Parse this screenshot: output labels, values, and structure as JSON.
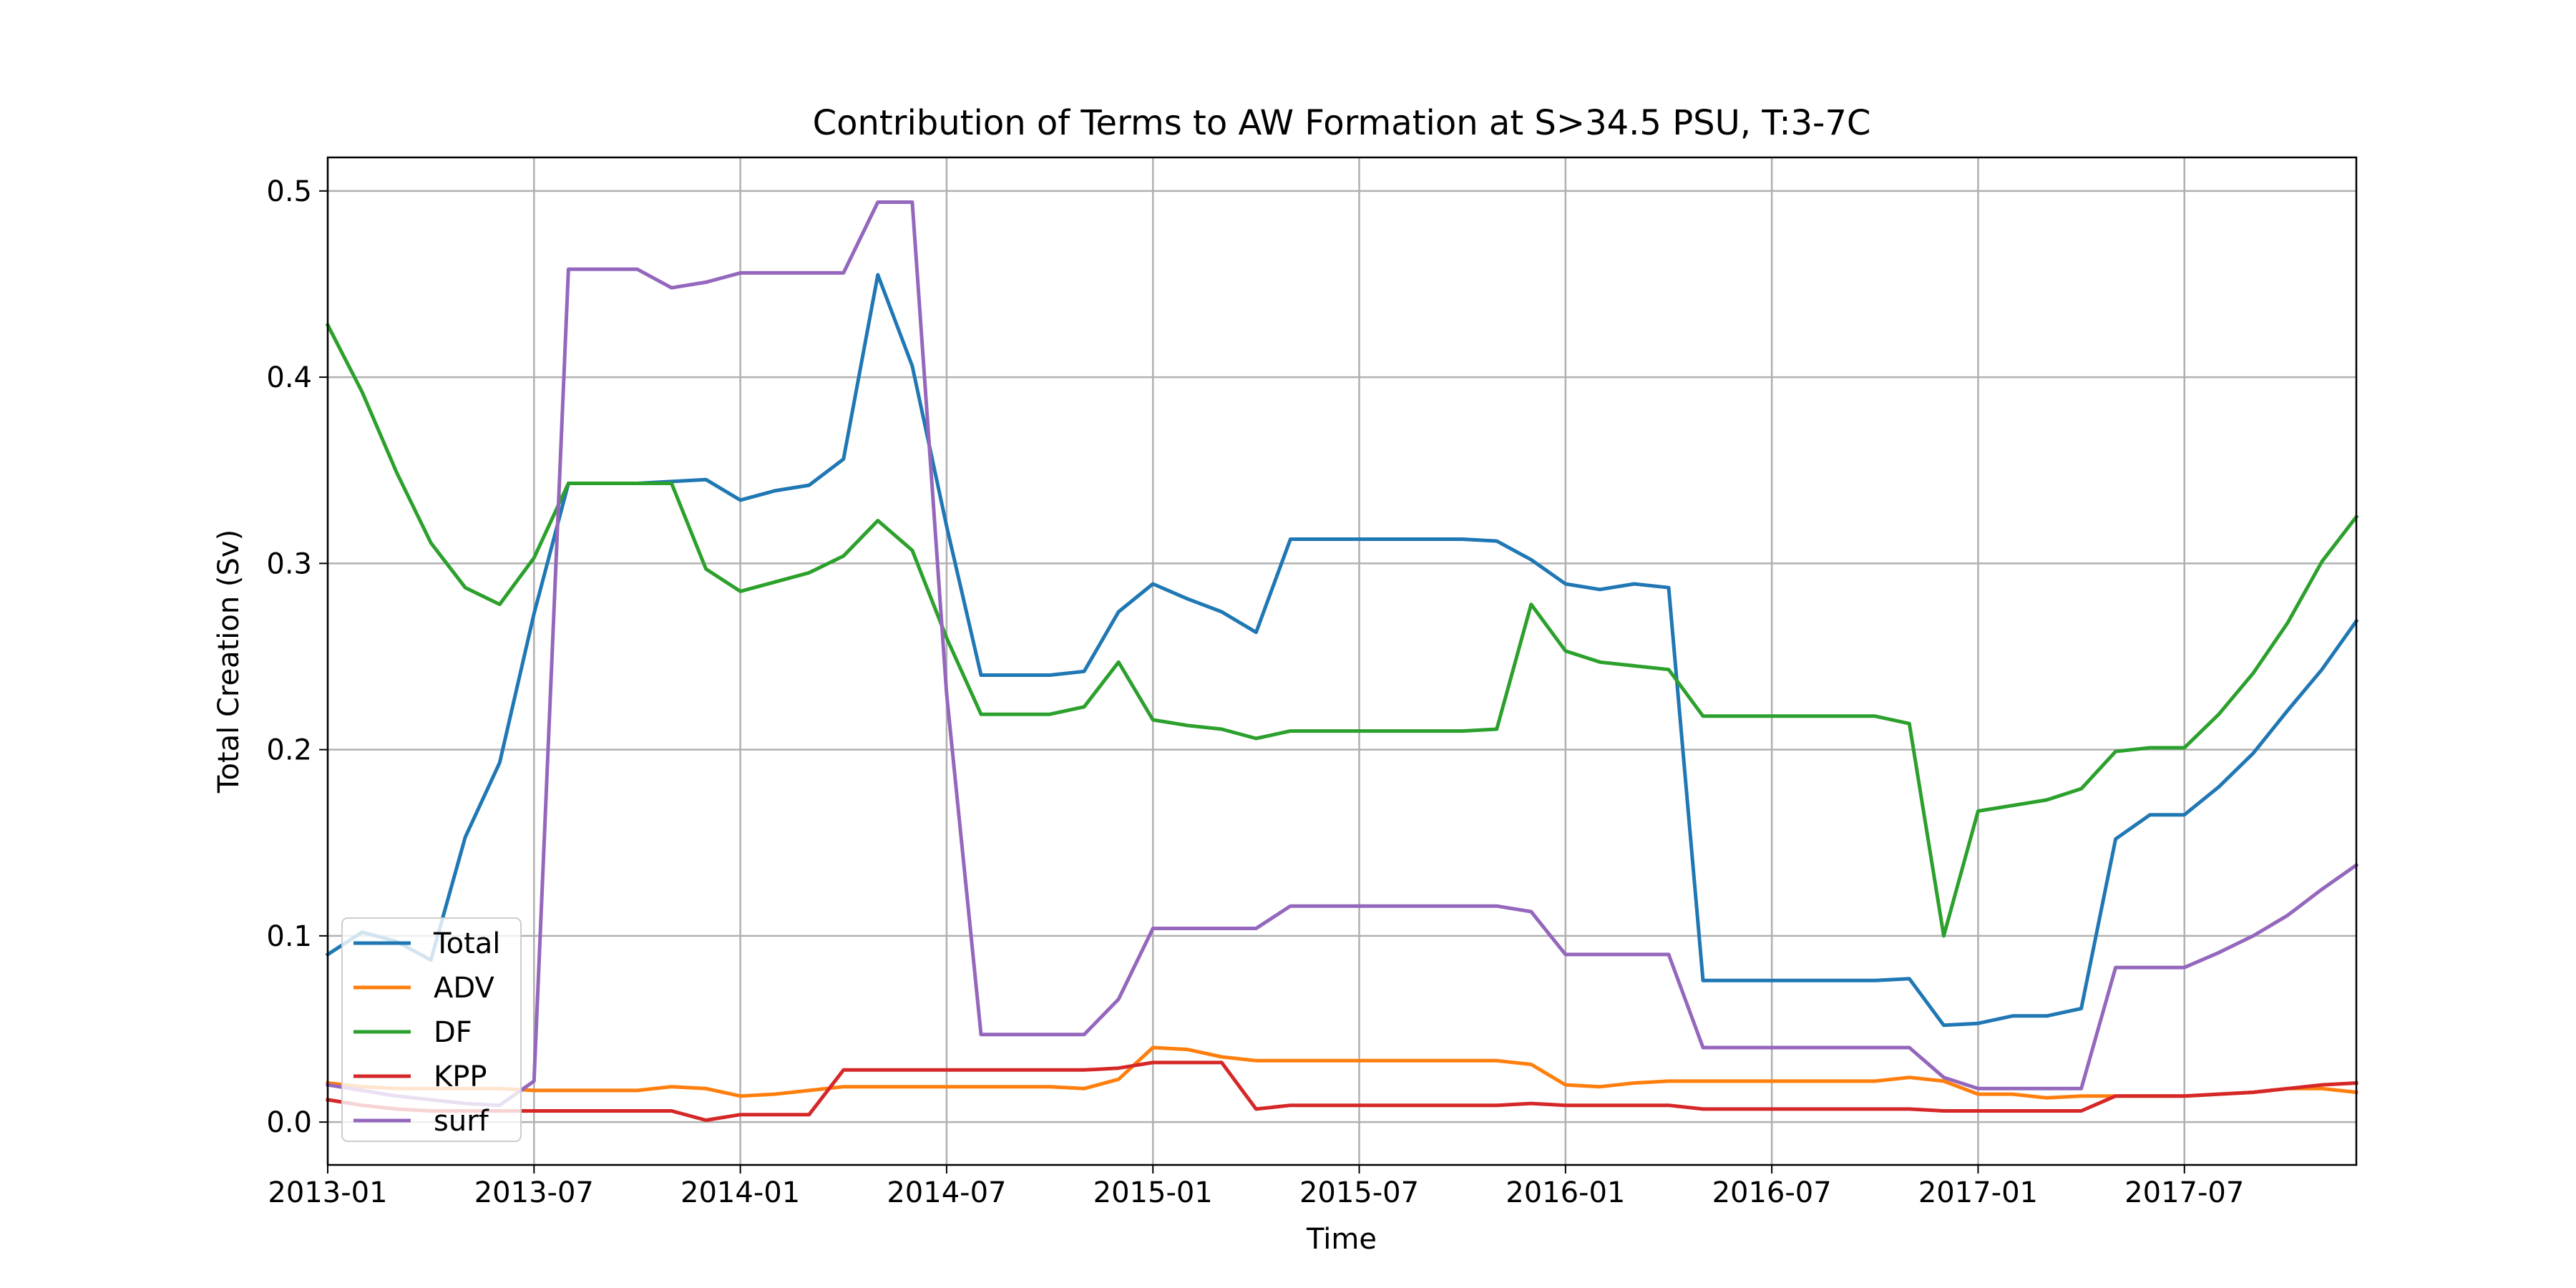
{
  "chart_data": {
    "type": "line",
    "title": "Contribution of Terms to AW Formation at S>34.5 PSU, T:3-7C",
    "xlabel": "Time",
    "ylabel": "Total Creation (Sv)",
    "x": [
      "2013-01",
      "2013-02",
      "2013-03",
      "2013-04",
      "2013-05",
      "2013-06",
      "2013-07",
      "2013-08",
      "2013-09",
      "2013-10",
      "2013-11",
      "2013-12",
      "2014-01",
      "2014-02",
      "2014-03",
      "2014-04",
      "2014-05",
      "2014-06",
      "2014-07",
      "2014-08",
      "2014-09",
      "2014-10",
      "2014-11",
      "2014-12",
      "2015-01",
      "2015-02",
      "2015-03",
      "2015-04",
      "2015-05",
      "2015-06",
      "2015-07",
      "2015-08",
      "2015-09",
      "2015-10",
      "2015-11",
      "2015-12",
      "2016-01",
      "2016-02",
      "2016-03",
      "2016-04",
      "2016-05",
      "2016-06",
      "2016-07",
      "2016-08",
      "2016-09",
      "2016-10",
      "2016-11",
      "2016-12",
      "2017-01",
      "2017-02",
      "2017-03",
      "2017-04",
      "2017-05",
      "2017-06",
      "2017-07",
      "2017-08",
      "2017-09",
      "2017-10",
      "2017-11",
      "2017-12"
    ],
    "x_ticks": [
      "2013-01",
      "2013-07",
      "2014-01",
      "2014-07",
      "2015-01",
      "2015-07",
      "2016-01",
      "2016-07",
      "2017-01",
      "2017-07"
    ],
    "xlim": [
      "2013-01",
      "2017-12"
    ],
    "ylim": [
      -0.023,
      0.518
    ],
    "y_ticks": [
      0.0,
      0.1,
      0.2,
      0.3,
      0.4,
      0.5
    ],
    "y_tick_labels": [
      "0.0",
      "0.1",
      "0.2",
      "0.3",
      "0.4",
      "0.5"
    ],
    "grid": true,
    "legend_position": "lower-left",
    "series": [
      {
        "name": "Total",
        "color": "#1f77b4",
        "values": [
          0.09,
          0.102,
          0.097,
          0.087,
          0.153,
          0.193,
          0.273,
          0.343,
          0.343,
          0.343,
          0.344,
          0.345,
          0.334,
          0.339,
          0.342,
          0.356,
          0.455,
          0.406,
          0.32,
          0.24,
          0.24,
          0.24,
          0.242,
          0.274,
          0.289,
          0.281,
          0.274,
          0.263,
          0.313,
          0.313,
          0.313,
          0.313,
          0.313,
          0.313,
          0.312,
          0.302,
          0.289,
          0.286,
          0.289,
          0.287,
          0.076,
          0.076,
          0.076,
          0.076,
          0.076,
          0.076,
          0.077,
          0.052,
          0.053,
          0.057,
          0.057,
          0.061,
          0.152,
          0.165,
          0.165,
          0.18,
          0.198,
          0.221,
          0.243,
          0.269
        ]
      },
      {
        "name": "ADV",
        "color": "#ff7f0e",
        "values": [
          0.021,
          0.019,
          0.018,
          0.018,
          0.018,
          0.018,
          0.017,
          0.017,
          0.017,
          0.017,
          0.019,
          0.018,
          0.014,
          0.015,
          0.017,
          0.019,
          0.019,
          0.019,
          0.019,
          0.019,
          0.019,
          0.019,
          0.018,
          0.023,
          0.04,
          0.039,
          0.035,
          0.033,
          0.033,
          0.033,
          0.033,
          0.033,
          0.033,
          0.033,
          0.033,
          0.031,
          0.02,
          0.019,
          0.021,
          0.022,
          0.022,
          0.022,
          0.022,
          0.022,
          0.022,
          0.022,
          0.024,
          0.022,
          0.015,
          0.015,
          0.013,
          0.014,
          0.014,
          0.014,
          0.014,
          0.015,
          0.016,
          0.018,
          0.018,
          0.016
        ]
      },
      {
        "name": "DF",
        "color": "#2ca02c",
        "values": [
          0.428,
          0.392,
          0.349,
          0.311,
          0.287,
          0.278,
          0.303,
          0.343,
          0.343,
          0.343,
          0.343,
          0.297,
          0.285,
          0.29,
          0.295,
          0.304,
          0.323,
          0.307,
          0.26,
          0.219,
          0.219,
          0.219,
          0.223,
          0.247,
          0.216,
          0.213,
          0.211,
          0.206,
          0.21,
          0.21,
          0.21,
          0.21,
          0.21,
          0.21,
          0.211,
          0.278,
          0.253,
          0.247,
          0.245,
          0.243,
          0.218,
          0.218,
          0.218,
          0.218,
          0.218,
          0.218,
          0.214,
          0.1,
          0.167,
          0.17,
          0.173,
          0.179,
          0.199,
          0.201,
          0.201,
          0.219,
          0.241,
          0.268,
          0.301,
          0.325
        ]
      },
      {
        "name": "KPP",
        "color": "#d62728",
        "values": [
          0.012,
          0.009,
          0.007,
          0.006,
          0.006,
          0.006,
          0.006,
          0.006,
          0.006,
          0.006,
          0.006,
          0.001,
          0.004,
          0.004,
          0.004,
          0.028,
          0.028,
          0.028,
          0.028,
          0.028,
          0.028,
          0.028,
          0.028,
          0.029,
          0.032,
          0.032,
          0.032,
          0.007,
          0.009,
          0.009,
          0.009,
          0.009,
          0.009,
          0.009,
          0.009,
          0.01,
          0.009,
          0.009,
          0.009,
          0.009,
          0.007,
          0.007,
          0.007,
          0.007,
          0.007,
          0.007,
          0.007,
          0.006,
          0.006,
          0.006,
          0.006,
          0.006,
          0.014,
          0.014,
          0.014,
          0.015,
          0.016,
          0.018,
          0.02,
          0.021
        ]
      },
      {
        "name": "surf",
        "color": "#9467bd",
        "values": [
          0.02,
          0.017,
          0.014,
          0.012,
          0.01,
          0.009,
          0.022,
          0.458,
          0.458,
          0.458,
          0.448,
          0.451,
          0.456,
          0.456,
          0.456,
          0.456,
          0.494,
          0.494,
          0.23,
          0.047,
          0.047,
          0.047,
          0.047,
          0.066,
          0.104,
          0.104,
          0.104,
          0.104,
          0.116,
          0.116,
          0.116,
          0.116,
          0.116,
          0.116,
          0.116,
          0.113,
          0.09,
          0.09,
          0.09,
          0.09,
          0.04,
          0.04,
          0.04,
          0.04,
          0.04,
          0.04,
          0.04,
          0.024,
          0.018,
          0.018,
          0.018,
          0.018,
          0.083,
          0.083,
          0.083,
          0.091,
          0.1,
          0.111,
          0.125,
          0.138
        ]
      }
    ]
  }
}
